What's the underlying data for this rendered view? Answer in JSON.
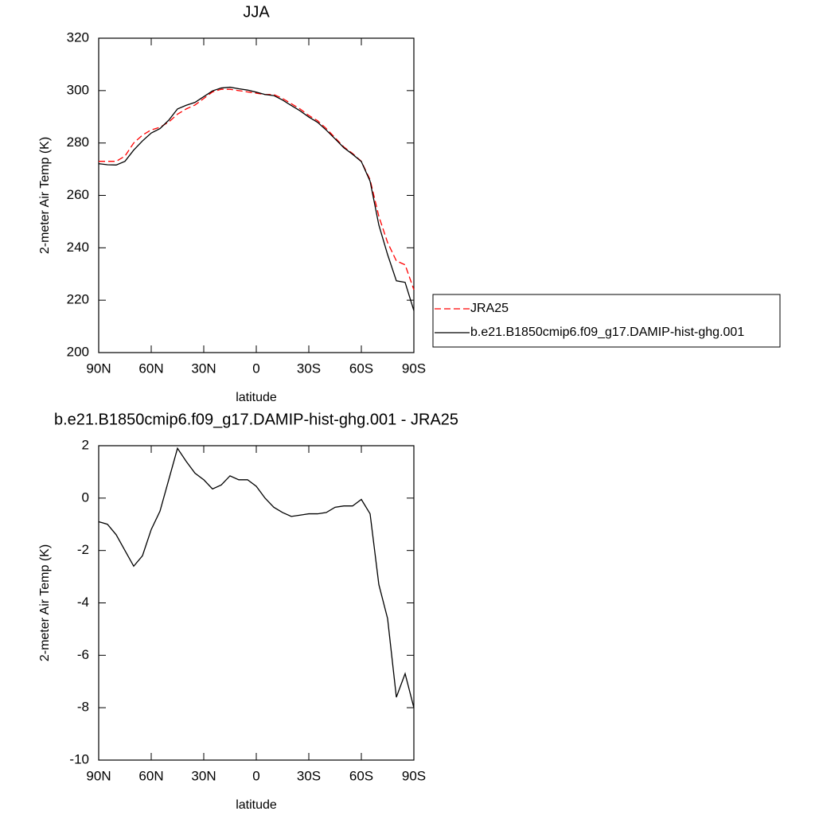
{
  "chart_data": [
    {
      "type": "line",
      "title": "JJA",
      "xlabel": "latitude",
      "ylabel": "2-meter Air Temp (K)",
      "x": [
        90,
        85,
        80,
        75,
        70,
        65,
        60,
        55,
        50,
        45,
        40,
        35,
        30,
        25,
        20,
        15,
        10,
        5,
        0,
        -5,
        -10,
        -15,
        -20,
        -25,
        -30,
        -35,
        -40,
        -45,
        -50,
        -55,
        -60,
        -65,
        -70,
        -75,
        -80,
        -85,
        -90
      ],
      "xlim": [
        90,
        -90
      ],
      "xticks": [
        {
          "value": 90,
          "label": "90N"
        },
        {
          "value": 60,
          "label": "60N"
        },
        {
          "value": 30,
          "label": "30N"
        },
        0,
        {
          "value": -30,
          "label": "30S"
        },
        {
          "value": -60,
          "label": "60S"
        },
        {
          "value": -90,
          "label": "90S"
        }
      ],
      "ylim": [
        200,
        320
      ],
      "yticks": [
        200,
        220,
        240,
        260,
        280,
        300,
        320
      ],
      "legend": "right",
      "series": [
        {
          "name": "JRA25",
          "color": "#ff0000",
          "dash": "dashed",
          "values": [
            273,
            273,
            273,
            275,
            280,
            283,
            285,
            286,
            288,
            291,
            293,
            294.5,
            297,
            299.5,
            300.5,
            300.5,
            300,
            299.5,
            299,
            298.5,
            298.5,
            297,
            295,
            293,
            290.5,
            288.5,
            285.5,
            282,
            278.5,
            276,
            273,
            266,
            252,
            242,
            235,
            233.5,
            224
          ]
        },
        {
          "name": "b.e21.B1850cmip6.f09_g17.DAMIP-hist-ghg.001",
          "color": "#000000",
          "dash": "solid",
          "values": [
            272.1,
            271.7,
            271.6,
            273,
            277.3,
            280.8,
            283.8,
            285.5,
            288.7,
            293,
            294.4,
            295.5,
            297.7,
            299.9,
            301,
            301.3,
            300.7,
            300.2,
            299.4,
            298.5,
            298.1,
            296.4,
            294.3,
            292.3,
            289.9,
            287.9,
            284.9,
            281.6,
            278.2,
            275.7,
            272.9,
            265.4,
            248.7,
            237.4,
            227.4,
            226.8,
            216
          ]
        }
      ]
    },
    {
      "type": "line",
      "title": "b.e21.B1850cmip6.f09_g17.DAMIP-hist-ghg.001 - JRA25",
      "xlabel": "latitude",
      "ylabel": "2-meter Air Temp (K)",
      "x": [
        90,
        85,
        80,
        75,
        70,
        65,
        60,
        55,
        50,
        45,
        40,
        35,
        30,
        25,
        20,
        15,
        10,
        5,
        0,
        -5,
        -10,
        -15,
        -20,
        -25,
        -30,
        -35,
        -40,
        -45,
        -50,
        -55,
        -60,
        -65,
        -70,
        -75,
        -80,
        -85,
        -90
      ],
      "xlim": [
        90,
        -90
      ],
      "xticks": [
        {
          "value": 90,
          "label": "90N"
        },
        {
          "value": 60,
          "label": "60N"
        },
        {
          "value": 30,
          "label": "30N"
        },
        0,
        {
          "value": -30,
          "label": "30S"
        },
        {
          "value": -60,
          "label": "60S"
        },
        {
          "value": -90,
          "label": "90S"
        }
      ],
      "ylim": [
        -10,
        2
      ],
      "yticks": [
        -10,
        -8,
        -6,
        -4,
        -2,
        0,
        2
      ],
      "series": [
        {
          "color": "#000000",
          "dash": "solid",
          "values": [
            -0.9,
            -1.0,
            -1.4,
            -2.0,
            -2.6,
            -2.2,
            -1.2,
            -0.5,
            0.7,
            1.9,
            1.4,
            0.95,
            0.7,
            0.35,
            0.5,
            0.85,
            0.7,
            0.7,
            0.45,
            0.0,
            -0.35,
            -0.55,
            -0.7,
            -0.65,
            -0.6,
            -0.6,
            -0.55,
            -0.35,
            -0.3,
            -0.3,
            -0.05,
            -0.6,
            -3.3,
            -4.6,
            -7.6,
            -6.7,
            -8.0
          ]
        }
      ]
    }
  ]
}
